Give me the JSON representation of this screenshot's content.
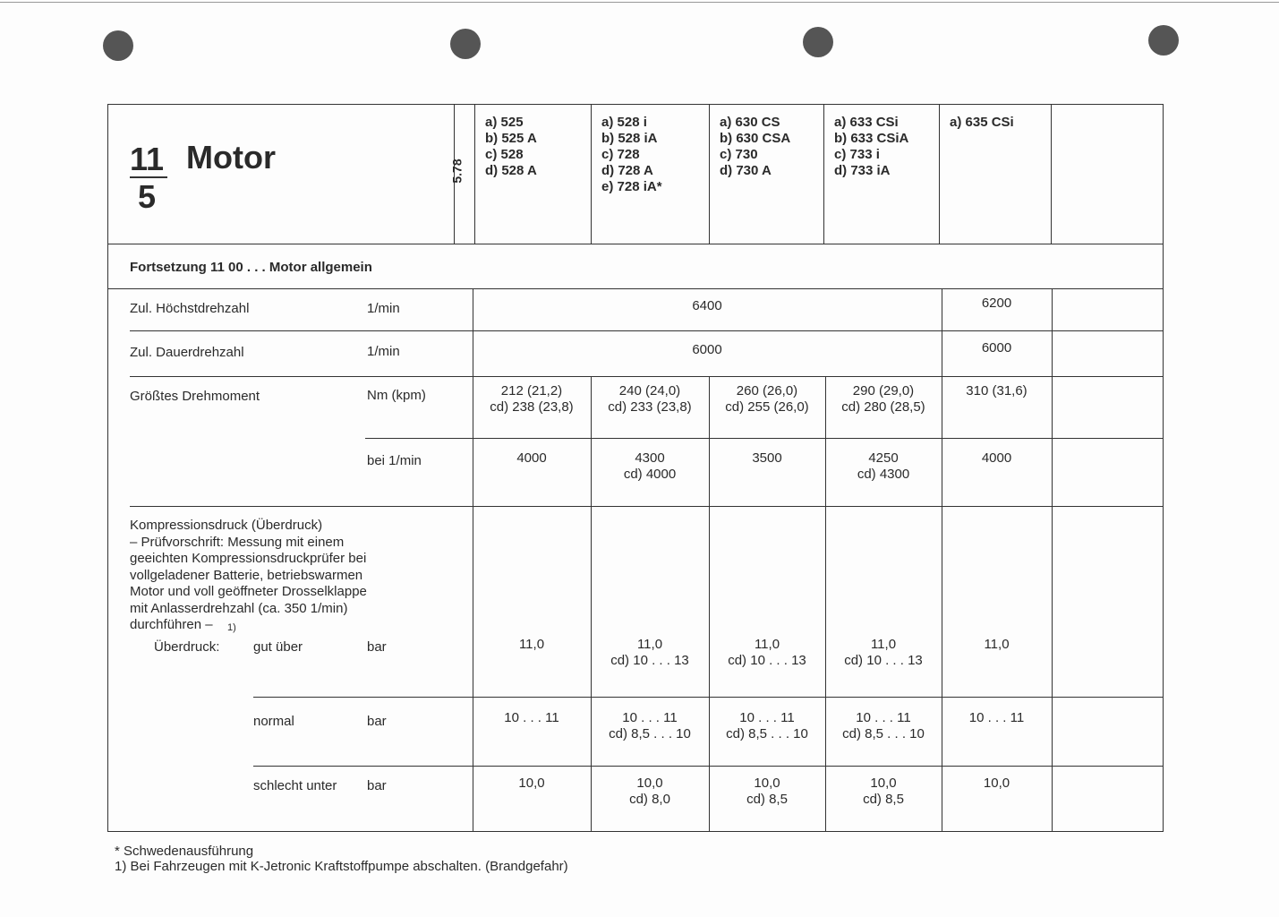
{
  "header": {
    "section_number": "11",
    "page_number": "5",
    "title": "Motor",
    "date": "5.78",
    "models": [
      [
        "a) 525",
        "b) 525 A",
        "c) 528",
        "d) 528 A"
      ],
      [
        "a) 528 i",
        "b) 528 iA",
        "c) 728",
        "d) 728 A",
        "e) 728 iA*"
      ],
      [
        "a) 630 CS",
        "b) 630 CSA",
        "c) 730",
        "d) 730 A"
      ],
      [
        "a) 633 CSi",
        "b) 633 CSiA",
        "c) 733 i",
        "d) 733 iA"
      ],
      [
        "a) 635 CSi"
      ]
    ]
  },
  "subtitle": "Fortsetzung 11 00 . . . Motor allgemein",
  "rows": {
    "max_rpm": {
      "label": "Zul. Höchstdrehzahl",
      "unit": "1/min",
      "value_1_4": "6400",
      "value_5": "6200"
    },
    "cont_rpm": {
      "label": "Zul. Dauerdrehzahl",
      "unit": "1/min",
      "value_1_4": "6000",
      "value_5": "6000"
    },
    "torque": {
      "label": "Größtes Drehmoment",
      "unit": "Nm (kpm)",
      "values": [
        [
          "212 (21,2)",
          "cd) 238 (23,8)"
        ],
        [
          "240 (24,0)",
          "cd) 233 (23,8)"
        ],
        [
          "260 (26,0)",
          "cd) 255 (26,0)"
        ],
        [
          "290 (29,0)",
          "cd) 280 (28,5)"
        ],
        [
          "310 (31,6)"
        ]
      ]
    },
    "torque_rpm": {
      "unit": "bei 1/min",
      "values": [
        [
          "4000"
        ],
        [
          "4300",
          "cd) 4000"
        ],
        [
          "3500"
        ],
        [
          "4250",
          "cd) 4300"
        ],
        [
          "4000"
        ]
      ]
    },
    "compression": {
      "description": [
        "Kompressionsdruck (Überdruck)",
        "– Prüfvorschrift: Messung mit einem",
        "geeichten Kompressionsdruckprüfer bei",
        "vollgeladener Batterie, betriebswarmen",
        "Motor und voll geöffneter Drosselklappe",
        "mit Anlasserdrehzahl (ca. 350 1/min)",
        "durchführen –"
      ],
      "footnote_ref": "1)",
      "overpressure_label": "Überdruck:"
    },
    "good": {
      "label": "gut über",
      "unit": "bar",
      "values": [
        [
          "11,0"
        ],
        [
          "11,0",
          "cd) 10 . . . 13"
        ],
        [
          "11,0",
          "cd) 10 . . . 13"
        ],
        [
          "11,0",
          "cd) 10 . . . 13"
        ],
        [
          "11,0"
        ]
      ]
    },
    "normal": {
      "label": "normal",
      "unit": "bar",
      "values": [
        [
          "10 . . . 11"
        ],
        [
          "10 . . . 11",
          "cd) 8,5 . . . 10"
        ],
        [
          "10 . . . 11",
          "cd) 8,5 . . . 10"
        ],
        [
          "10 . . . 11",
          "cd) 8,5 . . . 10"
        ],
        [
          "10 . . . 11"
        ]
      ]
    },
    "bad": {
      "label": "schlecht unter",
      "unit": "bar",
      "values": [
        [
          "10,0"
        ],
        [
          "10,0",
          "cd) 8,0"
        ],
        [
          "10,0",
          "cd) 8,5"
        ],
        [
          "10,0",
          "cd) 8,5"
        ],
        [
          "10,0"
        ]
      ]
    }
  },
  "footnotes": [
    "* Schwedenausführung",
    "1) Bei Fahrzeugen mit K-Jetronic Kraftstoffpumpe abschalten. (Brandgefahr)"
  ]
}
